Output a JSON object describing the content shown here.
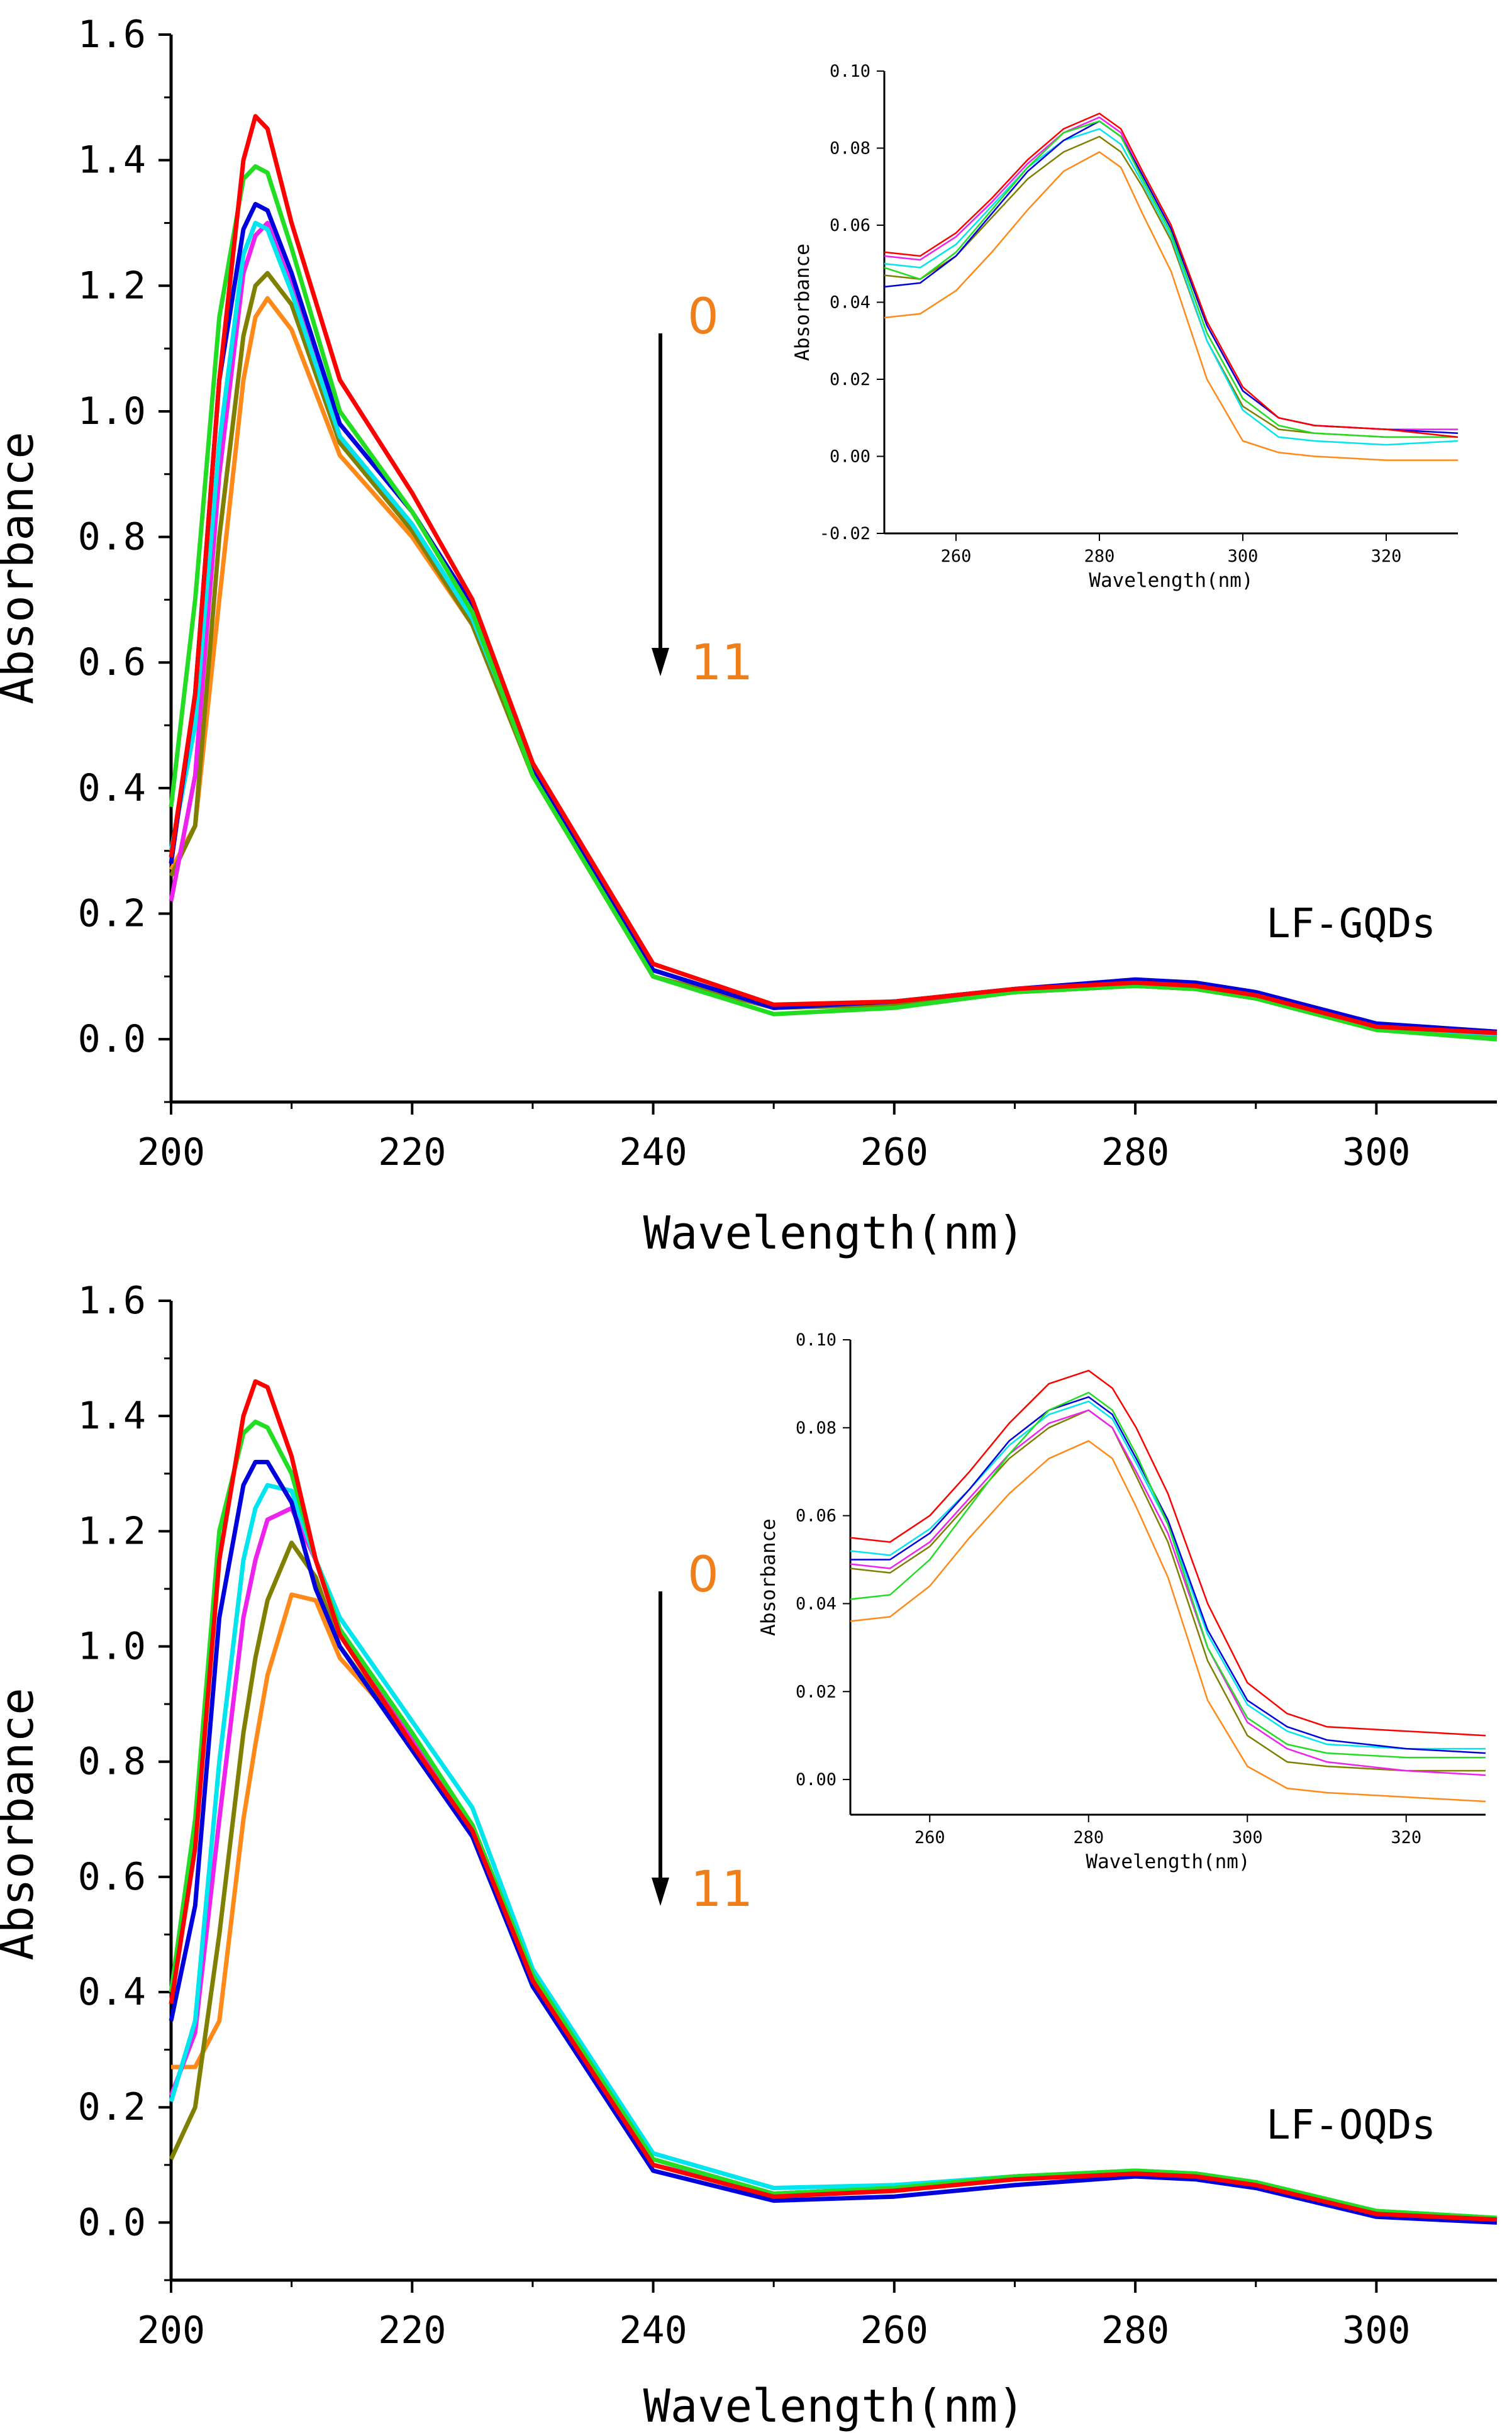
{
  "figure": {
    "series_colors": [
      "#ff0000",
      "#22dd22",
      "#0000dd",
      "#00e5ee",
      "#ee22ee",
      "#7f7f00",
      "#ff8a1a"
    ]
  },
  "chart_data": [
    {
      "type": "line",
      "panel_label": "LF-GQDs",
      "xlabel": "Wavelength(nm)",
      "ylabel": "Absorbance",
      "xlim": [
        200,
        310
      ],
      "ylim": [
        -0.1,
        1.6
      ],
      "xticks": [
        "200",
        "220",
        "240",
        "260",
        "280",
        "300"
      ],
      "xtick_values": [
        200,
        220,
        240,
        260,
        280,
        300
      ],
      "yticks": [
        "0.0",
        "0.2",
        "0.4",
        "0.6",
        "0.8",
        "1.0",
        "1.2",
        "1.4",
        "1.6"
      ],
      "ytick_values": [
        0,
        0.2,
        0.4,
        0.6,
        0.8,
        1.0,
        1.2,
        1.4,
        1.6
      ],
      "annotation": {
        "start": "0",
        "end": "11"
      },
      "x": [
        200,
        202,
        204,
        206,
        207,
        208,
        210,
        214,
        220,
        225,
        230,
        240,
        250,
        260,
        270,
        280,
        285,
        290,
        300,
        310
      ],
      "series": [
        {
          "name": "red",
          "values": [
            0.29,
            0.55,
            1.05,
            1.4,
            1.47,
            1.45,
            1.3,
            1.05,
            0.87,
            0.7,
            0.44,
            0.12,
            0.055,
            0.06,
            0.08,
            0.09,
            0.085,
            0.07,
            0.02,
            0.01
          ]
        },
        {
          "name": "green",
          "values": [
            0.37,
            0.7,
            1.15,
            1.37,
            1.39,
            1.38,
            1.26,
            1.0,
            0.84,
            0.68,
            0.42,
            0.1,
            0.04,
            0.05,
            0.075,
            0.085,
            0.08,
            0.065,
            0.015,
            0.0
          ]
        },
        {
          "name": "blue",
          "values": [
            0.28,
            0.55,
            1.05,
            1.29,
            1.33,
            1.32,
            1.22,
            0.98,
            0.84,
            0.69,
            0.43,
            0.11,
            0.05,
            0.06,
            0.08,
            0.095,
            0.09,
            0.075,
            0.025,
            0.012
          ]
        },
        {
          "name": "cyan",
          "values": [
            0.3,
            0.5,
            0.95,
            1.25,
            1.3,
            1.29,
            1.19,
            0.96,
            0.82,
            0.67,
            0.43,
            0.11,
            0.05,
            0.06,
            0.08,
            0.09,
            0.085,
            0.07,
            0.02,
            0.008
          ]
        },
        {
          "name": "magenta",
          "values": [
            0.22,
            0.42,
            0.9,
            1.22,
            1.28,
            1.3,
            1.2,
            0.96,
            0.82,
            0.67,
            0.43,
            0.11,
            0.05,
            0.06,
            0.08,
            0.09,
            0.085,
            0.07,
            0.02,
            0.008
          ]
        },
        {
          "name": "olive",
          "values": [
            0.26,
            0.34,
            0.8,
            1.12,
            1.2,
            1.22,
            1.17,
            0.95,
            0.81,
            0.66,
            0.42,
            0.1,
            0.05,
            0.055,
            0.075,
            0.085,
            0.08,
            0.065,
            0.015,
            0.005
          ]
        },
        {
          "name": "orange",
          "values": [
            0.27,
            0.34,
            0.7,
            1.05,
            1.15,
            1.18,
            1.13,
            0.93,
            0.8,
            0.66,
            0.42,
            0.1,
            0.05,
            0.055,
            0.075,
            0.085,
            0.08,
            0.065,
            0.015,
            0.005
          ]
        }
      ],
      "inset": {
        "xlabel": "Wavelength(nm)",
        "ylabel": "Absorbance",
        "xlim": [
          250,
          330
        ],
        "ylim": [
          -0.02,
          0.1
        ],
        "xticks": [
          "260",
          "280",
          "300",
          "320"
        ],
        "xtick_values": [
          260,
          280,
          300,
          320
        ],
        "yticks": [
          "-0.02",
          "0.00",
          "0.02",
          "0.04",
          "0.06",
          "0.08",
          "0.10"
        ],
        "ytick_values": [
          -0.02,
          0.0,
          0.02,
          0.04,
          0.06,
          0.08,
          0.1
        ],
        "x": [
          250,
          255,
          260,
          265,
          270,
          275,
          280,
          283,
          286,
          290,
          295,
          300,
          305,
          310,
          320,
          330
        ],
        "series": [
          {
            "name": "red",
            "values": [
              0.053,
              0.052,
              0.058,
              0.067,
              0.077,
              0.085,
              0.089,
              0.085,
              0.074,
              0.06,
              0.035,
              0.018,
              0.01,
              0.008,
              0.007,
              0.005
            ]
          },
          {
            "name": "green",
            "values": [
              0.049,
              0.046,
              0.053,
              0.064,
              0.075,
              0.084,
              0.087,
              0.083,
              0.072,
              0.058,
              0.032,
              0.015,
              0.008,
              0.006,
              0.005,
              0.005
            ]
          },
          {
            "name": "blue",
            "values": [
              0.044,
              0.045,
              0.052,
              0.063,
              0.074,
              0.082,
              0.087,
              0.083,
              0.073,
              0.059,
              0.034,
              0.017,
              0.01,
              0.008,
              0.007,
              0.006
            ]
          },
          {
            "name": "cyan",
            "values": [
              0.05,
              0.049,
              0.055,
              0.065,
              0.075,
              0.082,
              0.085,
              0.081,
              0.071,
              0.057,
              0.03,
              0.012,
              0.005,
              0.004,
              0.003,
              0.004
            ]
          },
          {
            "name": "magenta",
            "values": [
              0.052,
              0.051,
              0.057,
              0.066,
              0.076,
              0.084,
              0.088,
              0.084,
              0.073,
              0.059,
              0.034,
              0.017,
              0.01,
              0.008,
              0.007,
              0.007
            ]
          },
          {
            "name": "olive",
            "values": [
              0.047,
              0.046,
              0.052,
              0.062,
              0.072,
              0.079,
              0.083,
              0.079,
              0.07,
              0.056,
              0.03,
              0.013,
              0.007,
              0.006,
              0.005,
              0.005
            ]
          },
          {
            "name": "orange",
            "values": [
              0.036,
              0.037,
              0.043,
              0.053,
              0.064,
              0.074,
              0.079,
              0.075,
              0.063,
              0.048,
              0.02,
              0.004,
              0.001,
              0.0,
              -0.001,
              -0.001
            ]
          }
        ]
      }
    },
    {
      "type": "line",
      "panel_label": "LF-OQDs",
      "xlabel": "Wavelength(nm)",
      "ylabel": "Absorbance",
      "xlim": [
        200,
        310
      ],
      "ylim": [
        -0.1,
        1.6
      ],
      "xticks": [
        "200",
        "220",
        "240",
        "260",
        "280",
        "300"
      ],
      "xtick_values": [
        200,
        220,
        240,
        260,
        280,
        300
      ],
      "yticks": [
        "0.0",
        "0.2",
        "0.4",
        "0.6",
        "0.8",
        "1.0",
        "1.2",
        "1.4",
        "1.6"
      ],
      "ytick_values": [
        0,
        0.2,
        0.4,
        0.6,
        0.8,
        1.0,
        1.2,
        1.4,
        1.6
      ],
      "annotation": {
        "start": "0",
        "end": "11"
      },
      "x": [
        200,
        202,
        204,
        206,
        207,
        208,
        210,
        212,
        214,
        220,
        225,
        230,
        240,
        250,
        260,
        270,
        280,
        285,
        290,
        300,
        310
      ],
      "series": [
        {
          "name": "red",
          "values": [
            0.38,
            0.65,
            1.15,
            1.4,
            1.46,
            1.45,
            1.33,
            1.15,
            1.02,
            0.83,
            0.68,
            0.42,
            0.1,
            0.045,
            0.055,
            0.075,
            0.085,
            0.08,
            0.065,
            0.015,
            0.005
          ]
        },
        {
          "name": "green",
          "values": [
            0.4,
            0.7,
            1.2,
            1.37,
            1.39,
            1.38,
            1.3,
            1.15,
            1.03,
            0.85,
            0.69,
            0.43,
            0.11,
            0.05,
            0.06,
            0.08,
            0.09,
            0.085,
            0.07,
            0.02,
            0.008
          ]
        },
        {
          "name": "blue",
          "values": [
            0.35,
            0.55,
            1.05,
            1.28,
            1.32,
            1.32,
            1.25,
            1.1,
            1.0,
            0.82,
            0.67,
            0.41,
            0.09,
            0.038,
            0.045,
            0.065,
            0.08,
            0.075,
            0.06,
            0.01,
            0.0
          ]
        },
        {
          "name": "cyan",
          "values": [
            0.21,
            0.35,
            0.8,
            1.15,
            1.24,
            1.28,
            1.27,
            1.15,
            1.05,
            0.87,
            0.72,
            0.44,
            0.12,
            0.06,
            0.065,
            0.08,
            0.09,
            0.085,
            0.07,
            0.02,
            0.008
          ]
        },
        {
          "name": "magenta",
          "values": [
            0.22,
            0.33,
            0.7,
            1.05,
            1.15,
            1.22,
            1.24,
            1.15,
            1.03,
            0.84,
            0.69,
            0.42,
            0.1,
            0.05,
            0.06,
            0.08,
            0.088,
            0.082,
            0.067,
            0.017,
            0.005
          ]
        },
        {
          "name": "olive",
          "values": [
            0.11,
            0.2,
            0.5,
            0.85,
            0.98,
            1.08,
            1.18,
            1.12,
            1.0,
            0.83,
            0.68,
            0.42,
            0.1,
            0.05,
            0.06,
            0.08,
            0.088,
            0.082,
            0.067,
            0.017,
            0.005
          ]
        },
        {
          "name": "orange",
          "values": [
            0.27,
            0.27,
            0.35,
            0.7,
            0.83,
            0.95,
            1.09,
            1.08,
            0.98,
            0.84,
            0.69,
            0.43,
            0.11,
            0.05,
            0.06,
            0.08,
            0.09,
            0.085,
            0.07,
            0.02,
            0.008
          ]
        }
      ],
      "inset": {
        "xlabel": "Wavelength(nm)",
        "ylabel": "Absorbance",
        "xlim": [
          250,
          330
        ],
        "ylim": [
          -0.008,
          0.1
        ],
        "xticks": [
          "260",
          "280",
          "300",
          "320"
        ],
        "xtick_values": [
          260,
          280,
          300,
          320
        ],
        "yticks": [
          "0.00",
          "0.02",
          "0.04",
          "0.06",
          "0.08",
          "0.10"
        ],
        "ytick_values": [
          0.0,
          0.02,
          0.04,
          0.06,
          0.08,
          0.1
        ],
        "x": [
          250,
          255,
          260,
          265,
          270,
          275,
          280,
          283,
          286,
          290,
          295,
          300,
          305,
          310,
          320,
          330
        ],
        "series": [
          {
            "name": "red",
            "values": [
              0.055,
              0.054,
              0.06,
              0.07,
              0.081,
              0.09,
              0.093,
              0.089,
              0.08,
              0.065,
              0.04,
              0.022,
              0.015,
              0.012,
              0.011,
              0.01
            ]
          },
          {
            "name": "green",
            "values": [
              0.041,
              0.042,
              0.05,
              0.062,
              0.074,
              0.084,
              0.088,
              0.084,
              0.074,
              0.058,
              0.03,
              0.014,
              0.008,
              0.006,
              0.005,
              0.005
            ]
          },
          {
            "name": "blue",
            "values": [
              0.05,
              0.05,
              0.056,
              0.066,
              0.077,
              0.084,
              0.087,
              0.083,
              0.073,
              0.059,
              0.034,
              0.018,
              0.012,
              0.009,
              0.007,
              0.006
            ]
          },
          {
            "name": "cyan",
            "values": [
              0.052,
              0.051,
              0.057,
              0.066,
              0.076,
              0.083,
              0.086,
              0.082,
              0.072,
              0.058,
              0.033,
              0.017,
              0.011,
              0.008,
              0.007,
              0.007
            ]
          },
          {
            "name": "magenta",
            "values": [
              0.049,
              0.048,
              0.054,
              0.064,
              0.074,
              0.081,
              0.084,
              0.08,
              0.07,
              0.056,
              0.03,
              0.013,
              0.007,
              0.004,
              0.002,
              0.001
            ]
          },
          {
            "name": "olive",
            "values": [
              0.048,
              0.047,
              0.053,
              0.063,
              0.073,
              0.08,
              0.084,
              0.08,
              0.069,
              0.054,
              0.027,
              0.01,
              0.004,
              0.003,
              0.002,
              0.002
            ]
          },
          {
            "name": "orange",
            "values": [
              0.036,
              0.037,
              0.044,
              0.055,
              0.065,
              0.073,
              0.077,
              0.073,
              0.062,
              0.046,
              0.018,
              0.003,
              -0.002,
              -0.003,
              -0.004,
              -0.005
            ]
          }
        ]
      }
    }
  ]
}
